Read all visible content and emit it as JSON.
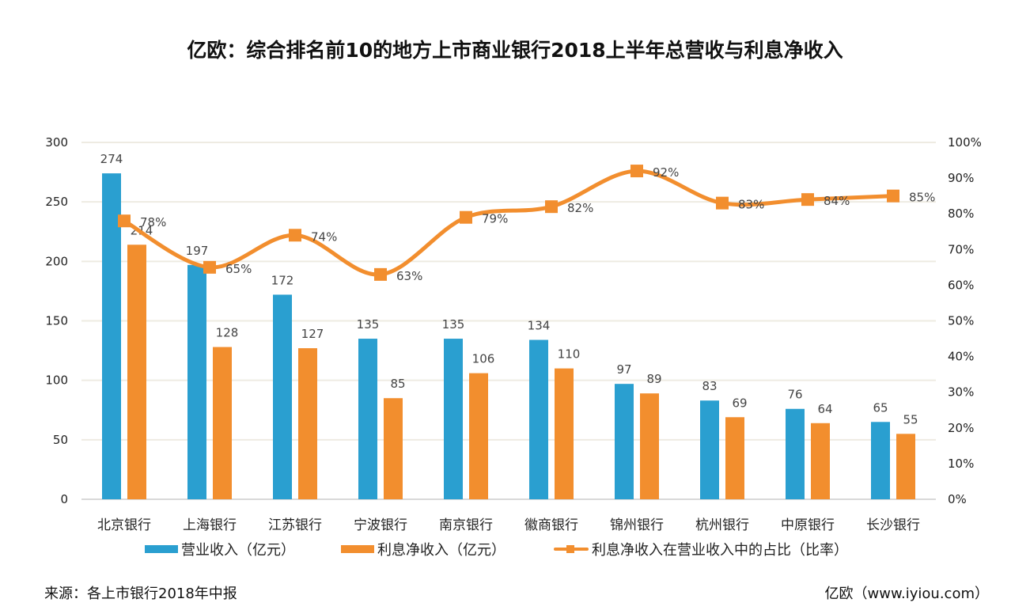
{
  "chart_data": {
    "type": "bar",
    "title": "亿欧：综合排名前10的地方上市商业银行2018上半年总营收与利息净收入",
    "categories": [
      "北京银行",
      "上海银行",
      "江苏银行",
      "宁波银行",
      "南京银行",
      "徽商银行",
      "锦州银行",
      "杭州银行",
      "中原银行",
      "长沙银行"
    ],
    "series": [
      {
        "name": "营业收入（亿元）",
        "type": "bar",
        "axis": "left",
        "color": "#2a9fd0",
        "values": [
          274,
          197,
          172,
          135,
          135,
          134,
          97,
          83,
          76,
          65
        ]
      },
      {
        "name": "利息净收入（亿元）",
        "type": "bar",
        "axis": "left",
        "color": "#f28e2e",
        "values": [
          214,
          128,
          127,
          85,
          106,
          110,
          89,
          69,
          64,
          55
        ]
      },
      {
        "name": "利息净收入在营业收入中的占比（比率）",
        "type": "line",
        "axis": "right",
        "color": "#f28e2e",
        "values": [
          78,
          65,
          74,
          63,
          79,
          82,
          92,
          83,
          84,
          85
        ],
        "labels": [
          "78%",
          "65%",
          "74%",
          "63%",
          "79%",
          "82%",
          "92%",
          "83%",
          "84%",
          "85%"
        ]
      }
    ],
    "left_axis": {
      "ylim": [
        0,
        300
      ],
      "ticks": [
        0,
        50,
        100,
        150,
        200,
        250,
        300
      ],
      "tick_labels": [
        "0",
        "50",
        "100",
        "150",
        "200",
        "250",
        "300"
      ]
    },
    "right_axis": {
      "ylim": [
        0,
        100
      ],
      "ticks": [
        0,
        10,
        20,
        30,
        40,
        50,
        60,
        70,
        80,
        90,
        100
      ],
      "tick_labels": [
        "0%",
        "10%",
        "20%",
        "30%",
        "40%",
        "50%",
        "60%",
        "70%",
        "80%",
        "90%",
        "100%"
      ]
    },
    "xlabel": "",
    "ylabel": "",
    "grid": true,
    "legend_position": "bottom"
  },
  "footer": {
    "source": "来源：各上市银行2018年中报",
    "credit": "亿欧（www.iyiou.com）"
  }
}
